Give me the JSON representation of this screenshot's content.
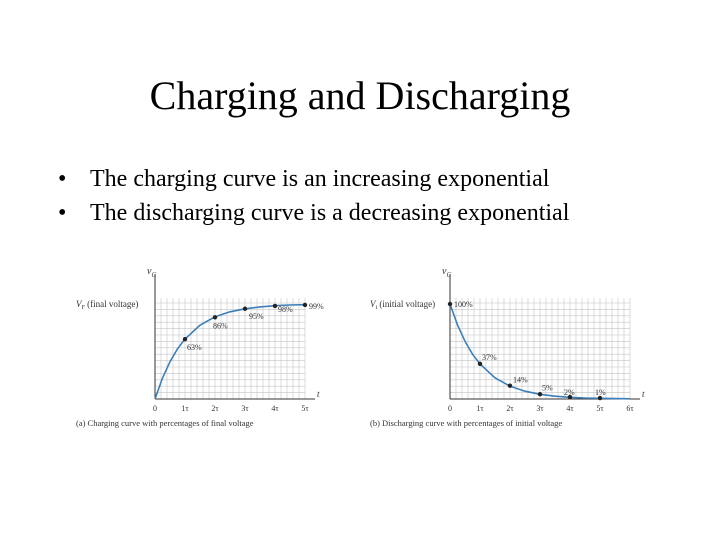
{
  "slide": {
    "title": "Charging and Discharging",
    "bullets": [
      "The charging curve is an increasing exponential",
      "The discharging curve is a decreasing exponential"
    ]
  },
  "chart_data": [
    {
      "type": "line",
      "caption": "(a)  Charging curve with percentages of final voltage",
      "ylabel_main": "v",
      "ylabel_sub": "C",
      "y_ref_label": "(final voltage)",
      "y_ref_symbol": "V",
      "y_ref_symbol_sub": "F",
      "xlabel": "t",
      "x_ticks": [
        "0",
        "1τ",
        "2τ",
        "3τ",
        "4τ",
        "5τ"
      ],
      "xlim": [
        0,
        5
      ],
      "ylim": [
        0,
        100
      ],
      "grid": true,
      "series": [
        {
          "x": [
            0,
            0.25,
            0.5,
            0.75,
            1,
            1.5,
            2,
            2.5,
            3,
            3.5,
            4,
            4.5,
            5
          ],
          "y": [
            0,
            22.1,
            39.3,
            52.8,
            63.2,
            77.7,
            86.5,
            91.8,
            95.0,
            97.0,
            98.2,
            98.9,
            99.3
          ]
        }
      ],
      "points": [
        {
          "x": 1,
          "y": 63,
          "label": "63%"
        },
        {
          "x": 2,
          "y": 86,
          "label": "86%"
        },
        {
          "x": 3,
          "y": 95,
          "label": "95%"
        },
        {
          "x": 4,
          "y": 98,
          "label": "98%"
        },
        {
          "x": 5,
          "y": 99,
          "label": "99%"
        }
      ]
    },
    {
      "type": "line",
      "caption": "(b)  Discharging curve with percentages of initial voltage",
      "ylabel_main": "v",
      "ylabel_sub": "C",
      "y_ref_label": "(initial voltage)",
      "y_ref_symbol": "V",
      "y_ref_symbol_sub": "i",
      "xlabel": "t",
      "x_ticks": [
        "0",
        "1τ",
        "2τ",
        "3τ",
        "4τ",
        "5τ",
        "6τ"
      ],
      "xlim": [
        0,
        6
      ],
      "ylim": [
        0,
        100
      ],
      "grid": true,
      "series": [
        {
          "x": [
            0,
            0.25,
            0.5,
            0.75,
            1,
            1.5,
            2,
            2.5,
            3,
            3.5,
            4,
            4.5,
            5,
            5.5,
            6
          ],
          "y": [
            100,
            77.9,
            60.7,
            47.2,
            36.8,
            22.3,
            13.5,
            8.2,
            5.0,
            3.0,
            1.8,
            1.1,
            0.7,
            0.4,
            0.25
          ]
        }
      ],
      "points": [
        {
          "x": 0,
          "y": 100,
          "label": "100%"
        },
        {
          "x": 1,
          "y": 37,
          "label": "37%"
        },
        {
          "x": 2,
          "y": 14,
          "label": "14%"
        },
        {
          "x": 3,
          "y": 5,
          "label": "5%"
        },
        {
          "x": 4,
          "y": 2,
          "label": "2%"
        },
        {
          "x": 5,
          "y": 1,
          "label": "1%"
        }
      ]
    }
  ]
}
